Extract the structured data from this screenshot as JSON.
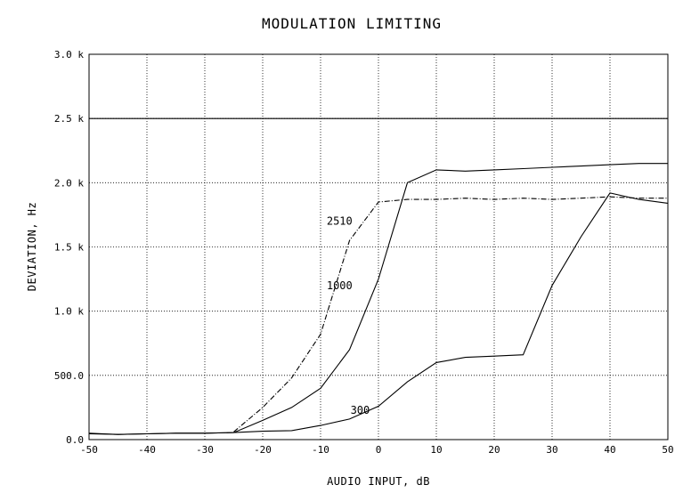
{
  "chart_data": {
    "type": "line",
    "title": "MODULATION LIMITING",
    "xlabel": "AUDIO INPUT, dB",
    "ylabel": "DEVIATION, Hz",
    "xlim": [
      -50,
      50
    ],
    "ylim": [
      0,
      3000
    ],
    "x_ticks": [
      -50,
      -40,
      -30,
      -20,
      -10,
      0,
      10,
      20,
      30,
      40,
      50
    ],
    "x_tick_labels": [
      "-50",
      "-40",
      "-30",
      "-20",
      "-10",
      "0",
      "10",
      "20",
      "30",
      "40",
      "50"
    ],
    "y_ticks": [
      0,
      500,
      1000,
      1500,
      2000,
      2500,
      3000
    ],
    "y_tick_labels": [
      "0.0",
      "500.0",
      "1.0 k",
      "1.5 k",
      "2.0 k",
      "2.5 k",
      "3.0 k"
    ],
    "grid": true,
    "legend": "none",
    "reference_lines": [
      {
        "y": 2500
      }
    ],
    "series": [
      {
        "name": "300",
        "style": "solid",
        "x": [
          -50,
          -45,
          -40,
          -35,
          -30,
          -25,
          -20,
          -15,
          -10,
          -5,
          0,
          5,
          10,
          15,
          20,
          25,
          30,
          35,
          40,
          45,
          50
        ],
        "y": [
          45,
          40,
          45,
          50,
          50,
          55,
          65,
          70,
          110,
          160,
          260,
          450,
          600,
          640,
          650,
          660,
          1200,
          1580,
          1920,
          1870,
          1840
        ]
      },
      {
        "name": "1000",
        "style": "solid",
        "x": [
          -50,
          -45,
          -40,
          -35,
          -30,
          -25,
          -20,
          -15,
          -10,
          -5,
          0,
          5,
          10,
          15,
          20,
          25,
          30,
          35,
          40,
          45,
          50
        ],
        "y": [
          50,
          40,
          45,
          50,
          50,
          55,
          150,
          250,
          400,
          700,
          1250,
          2000,
          2100,
          2090,
          2100,
          2110,
          2120,
          2130,
          2140,
          2150,
          2150
        ]
      },
      {
        "name": "2510",
        "style": "dashdot",
        "x": [
          -25,
          -20,
          -15,
          -10,
          -5,
          0,
          5,
          10,
          15,
          20,
          25,
          30,
          35,
          40,
          45,
          50
        ],
        "y": [
          60,
          250,
          480,
          820,
          1550,
          1850,
          1870,
          1870,
          1880,
          1870,
          1880,
          1870,
          1880,
          1890,
          1880,
          1880
        ]
      }
    ],
    "series_label_positions": {
      "2510": {
        "x": -4.5,
        "y": 1700
      },
      "1000": {
        "x": -4.5,
        "y": 1200
      },
      "300": {
        "x": -1.5,
        "y": 230
      }
    }
  }
}
